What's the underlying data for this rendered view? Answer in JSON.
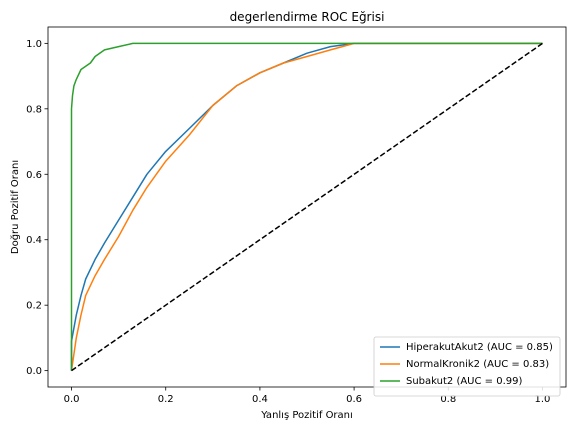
{
  "chart_data": {
    "type": "line",
    "title": "degerlendirme ROC Eğrisi",
    "xlabel": "Yanlış Pozitif Oranı",
    "ylabel": "Doğru Pozitif Oranı",
    "xlim": [
      -0.05,
      1.05
    ],
    "ylim": [
      -0.05,
      1.05
    ],
    "x_ticks": [
      "0.0",
      "0.2",
      "0.4",
      "0.6",
      "0.8",
      "1.0"
    ],
    "y_ticks": [
      "0.0",
      "0.2",
      "0.4",
      "0.6",
      "0.8",
      "1.0"
    ],
    "grid": false,
    "legend_position": "lower-right",
    "series": [
      {
        "name": "HiperakutAkut2 (AUC = 0.85)",
        "color": "#1f77b4",
        "x": [
          0.0,
          0.0,
          0.005,
          0.01,
          0.02,
          0.03,
          0.05,
          0.07,
          0.1,
          0.13,
          0.16,
          0.2,
          0.25,
          0.3,
          0.35,
          0.4,
          0.45,
          0.5,
          0.55,
          0.6,
          0.65,
          0.7,
          1.0
        ],
        "y": [
          0.0,
          0.09,
          0.13,
          0.17,
          0.23,
          0.28,
          0.34,
          0.39,
          0.46,
          0.53,
          0.6,
          0.67,
          0.74,
          0.81,
          0.87,
          0.91,
          0.94,
          0.97,
          0.99,
          1.0,
          1.0,
          1.0,
          1.0
        ]
      },
      {
        "name": "NormalKronik2 (AUC = 0.83)",
        "color": "#ff7f0e",
        "x": [
          0.0,
          0.005,
          0.01,
          0.02,
          0.03,
          0.05,
          0.07,
          0.1,
          0.13,
          0.16,
          0.2,
          0.25,
          0.3,
          0.35,
          0.4,
          0.45,
          0.5,
          0.55,
          0.6,
          0.65,
          1.0
        ],
        "y": [
          0.0,
          0.05,
          0.1,
          0.17,
          0.23,
          0.29,
          0.34,
          0.41,
          0.49,
          0.56,
          0.64,
          0.72,
          0.81,
          0.87,
          0.91,
          0.94,
          0.96,
          0.98,
          1.0,
          1.0,
          1.0
        ]
      },
      {
        "name": "Subakut2 (AUC = 0.99)",
        "color": "#2ca02c",
        "x": [
          0.0,
          0.0,
          0.002,
          0.005,
          0.01,
          0.02,
          0.03,
          0.04,
          0.05,
          0.07,
          0.1,
          0.13,
          0.18,
          0.3,
          0.6,
          1.0
        ],
        "y": [
          0.0,
          0.8,
          0.84,
          0.87,
          0.89,
          0.92,
          0.93,
          0.94,
          0.96,
          0.98,
          0.99,
          1.0,
          1.0,
          1.0,
          1.0,
          1.0
        ]
      },
      {
        "color": "#000000",
        "dashed": true,
        "x": [
          0.0,
          1.0
        ],
        "y": [
          0.0,
          1.0
        ]
      }
    ]
  }
}
